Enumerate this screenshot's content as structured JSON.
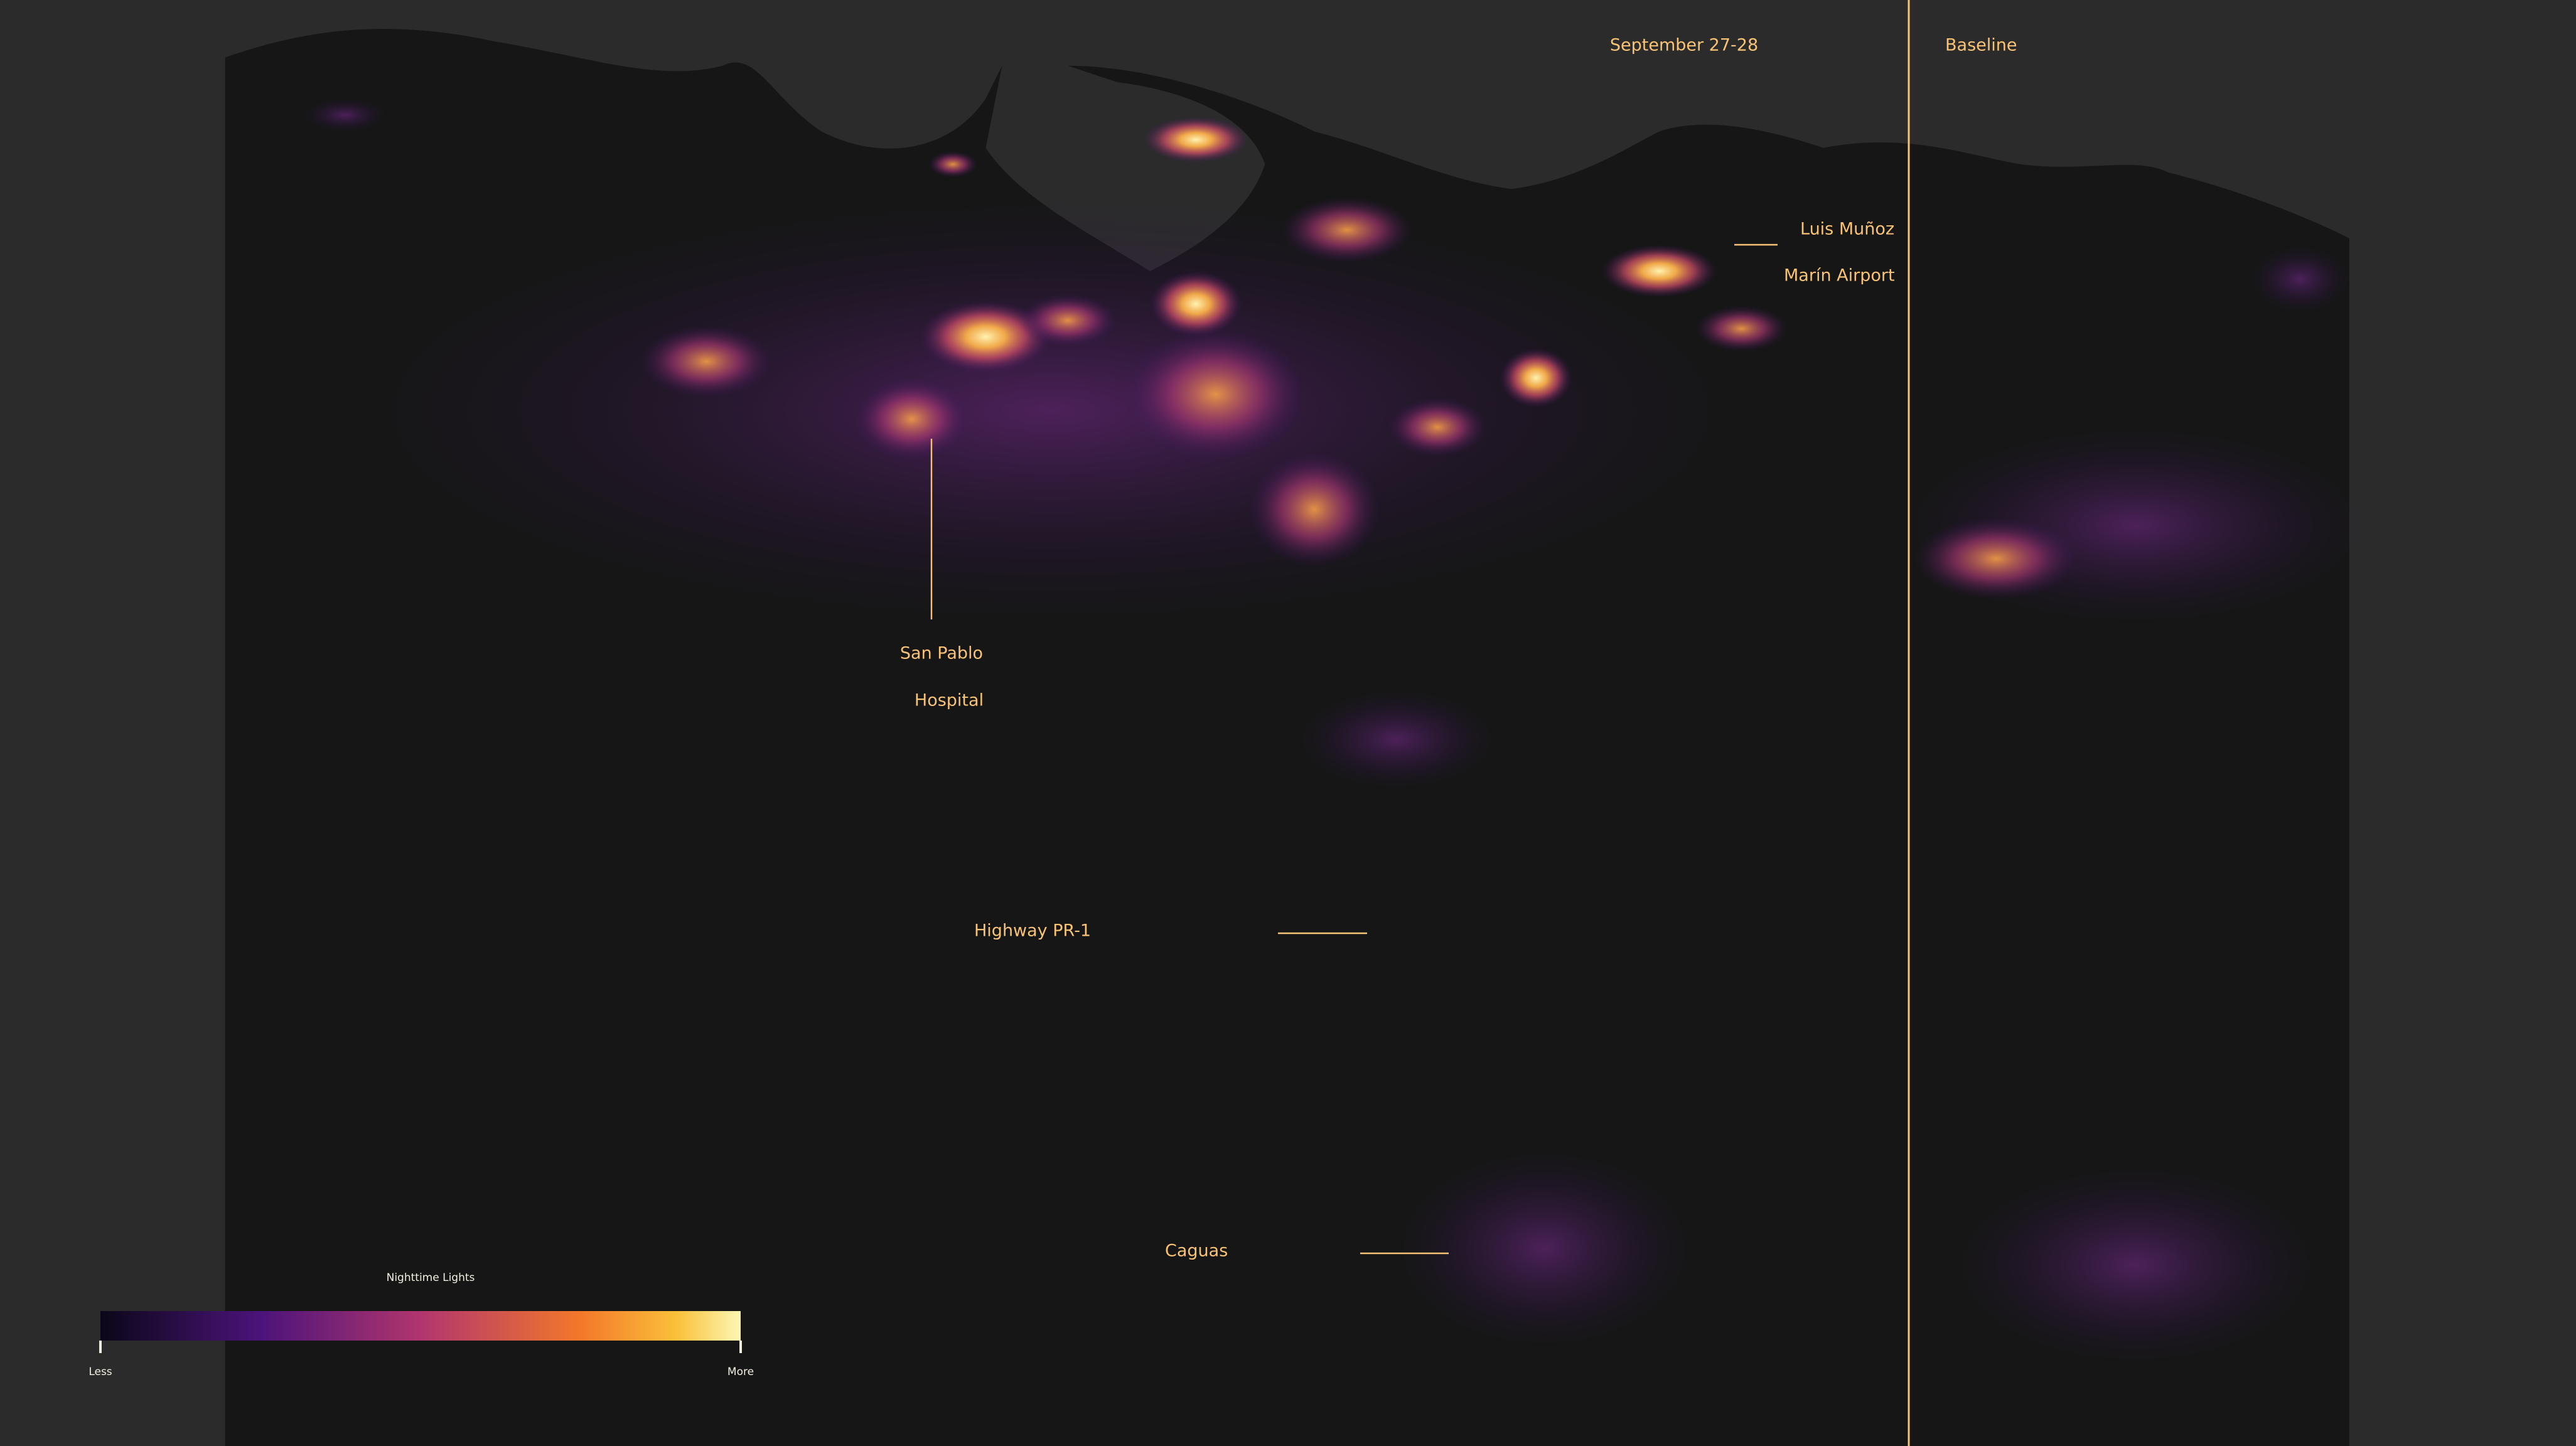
{
  "header": {
    "left_label": "September 27-28",
    "right_label": "Baseline"
  },
  "annotations": [
    {
      "lines": [
        "Luis Muñoz",
        "Marín Airport"
      ]
    },
    {
      "lines": [
        "San Pablo",
        "Hospital"
      ]
    },
    {
      "lines": [
        "Highway PR-1"
      ]
    },
    {
      "lines": [
        "Caguas"
      ]
    }
  ],
  "legend": {
    "title": "Nighttime Lights",
    "min_label": "Less",
    "max_label": "More"
  }
}
